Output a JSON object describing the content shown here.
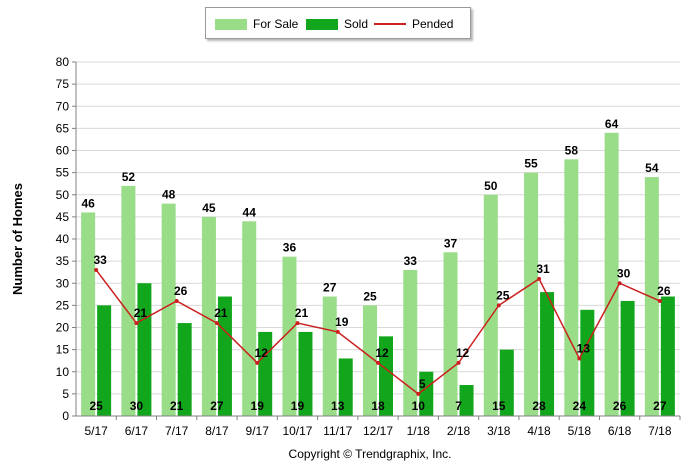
{
  "chart_data": {
    "type": "bar",
    "categories": [
      "5/17",
      "6/17",
      "7/17",
      "8/17",
      "9/17",
      "10/17",
      "11/17",
      "12/17",
      "1/18",
      "2/18",
      "3/18",
      "4/18",
      "5/18",
      "6/18",
      "7/18"
    ],
    "series": [
      {
        "name": "For Sale",
        "type": "bar",
        "color": "#99dd88",
        "values": [
          46,
          52,
          48,
          45,
          44,
          36,
          27,
          25,
          33,
          37,
          50,
          55,
          58,
          64,
          54
        ]
      },
      {
        "name": "Sold",
        "type": "bar",
        "color": "#12a61c",
        "values": [
          25,
          30,
          21,
          27,
          19,
          19,
          13,
          18,
          10,
          7,
          15,
          28,
          24,
          26,
          27
        ]
      },
      {
        "name": "Pended",
        "type": "line",
        "color": "#cc1f1f",
        "values": [
          33,
          21,
          26,
          21,
          12,
          21,
          19,
          12,
          5,
          12,
          25,
          31,
          13,
          30,
          26
        ]
      }
    ],
    "ylabel": "Number of Homes",
    "xlabel": "",
    "ylim": [
      0,
      80
    ],
    "yticks": [
      0,
      5,
      10,
      15,
      20,
      25,
      30,
      35,
      40,
      45,
      50,
      55,
      60,
      65,
      70,
      75,
      80
    ],
    "grid": true,
    "legend_position": "top-center"
  },
  "legend": {
    "for_sale": "For Sale",
    "sold": "Sold",
    "pended": "Pended"
  },
  "footer": {
    "copyright": "Copyright © Trendgraphix, Inc."
  }
}
